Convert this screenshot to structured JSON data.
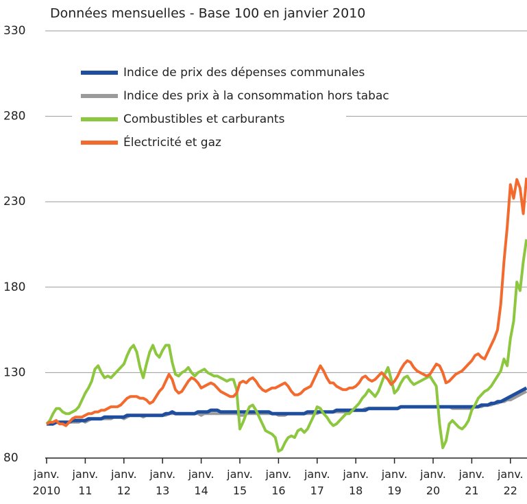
{
  "chart_data": {
    "type": "line",
    "title": "Données mensuelles - Base 100 en janvier 2010",
    "x": [
      "2010-01",
      "2010-02",
      "2010-03",
      "2010-04",
      "2010-05",
      "2010-06",
      "2010-07",
      "2010-08",
      "2010-09",
      "2010-10",
      "2010-11",
      "2010-12",
      "2011-01",
      "2011-02",
      "2011-03",
      "2011-04",
      "2011-05",
      "2011-06",
      "2011-07",
      "2011-08",
      "2011-09",
      "2011-10",
      "2011-11",
      "2011-12",
      "2012-01",
      "2012-02",
      "2012-03",
      "2012-04",
      "2012-05",
      "2012-06",
      "2012-07",
      "2012-08",
      "2012-09",
      "2012-10",
      "2012-11",
      "2012-12",
      "2013-01",
      "2013-02",
      "2013-03",
      "2013-04",
      "2013-05",
      "2013-06",
      "2013-07",
      "2013-08",
      "2013-09",
      "2013-10",
      "2013-11",
      "2013-12",
      "2014-01",
      "2014-02",
      "2014-03",
      "2014-04",
      "2014-05",
      "2014-06",
      "2014-07",
      "2014-08",
      "2014-09",
      "2014-10",
      "2014-11",
      "2014-12",
      "2015-01",
      "2015-02",
      "2015-03",
      "2015-04",
      "2015-05",
      "2015-06",
      "2015-07",
      "2015-08",
      "2015-09",
      "2015-10",
      "2015-11",
      "2015-12",
      "2016-01",
      "2016-02",
      "2016-03",
      "2016-04",
      "2016-05",
      "2016-06",
      "2016-07",
      "2016-08",
      "2016-09",
      "2016-10",
      "2016-11",
      "2016-12",
      "2017-01",
      "2017-02",
      "2017-03",
      "2017-04",
      "2017-05",
      "2017-06",
      "2017-07",
      "2017-08",
      "2017-09",
      "2017-10",
      "2017-11",
      "2017-12",
      "2018-01",
      "2018-02",
      "2018-03",
      "2018-04",
      "2018-05",
      "2018-06",
      "2018-07",
      "2018-08",
      "2018-09",
      "2018-10",
      "2018-11",
      "2018-12",
      "2019-01",
      "2019-02",
      "2019-03",
      "2019-04",
      "2019-05",
      "2019-06",
      "2019-07",
      "2019-08",
      "2019-09",
      "2019-10",
      "2019-11",
      "2019-12",
      "2020-01",
      "2020-02",
      "2020-03",
      "2020-04",
      "2020-05",
      "2020-06",
      "2020-07",
      "2020-08",
      "2020-09",
      "2020-10",
      "2020-11",
      "2020-12",
      "2021-01",
      "2021-02",
      "2021-03",
      "2021-04",
      "2021-05",
      "2021-06",
      "2021-07",
      "2021-08",
      "2021-09",
      "2021-10",
      "2021-11",
      "2021-12",
      "2022-01",
      "2022-02",
      "2022-03",
      "2022-04",
      "2022-05",
      "2022-06"
    ],
    "xticks": [
      {
        "value": "2010-01",
        "label": "janv.\n2010"
      },
      {
        "value": "2011-01",
        "label": "janv.\n11"
      },
      {
        "value": "2012-01",
        "label": "janv.\n12"
      },
      {
        "value": "2013-01",
        "label": "janv.\n13"
      },
      {
        "value": "2014-01",
        "label": "janv.\n14"
      },
      {
        "value": "2015-01",
        "label": "janv.\n15"
      },
      {
        "value": "2016-01",
        "label": "janv.\n16"
      },
      {
        "value": "2017-01",
        "label": "janv.\n17"
      },
      {
        "value": "2018-01",
        "label": "janv.\n18"
      },
      {
        "value": "2019-01",
        "label": "janv.\n19"
      },
      {
        "value": "2020-01",
        "label": "janv.\n20"
      },
      {
        "value": "2021-01",
        "label": "janv.\n21"
      },
      {
        "value": "2022-01",
        "label": "janv.\n22"
      }
    ],
    "ylim": [
      80,
      330
    ],
    "yticks": [
      80,
      130,
      180,
      230,
      280,
      330
    ],
    "grid": true,
    "legend": "top-left",
    "series": [
      {
        "name": "Indice des prix à la consommation hors tabac",
        "color": "#9a9a9a",
        "values": [
          100,
          100,
          100,
          101,
          101,
          101,
          100,
          101,
          101,
          101,
          101,
          102,
          101,
          102,
          103,
          103,
          103,
          103,
          103,
          103,
          103,
          104,
          104,
          104,
          103,
          104,
          105,
          105,
          105,
          105,
          104,
          105,
          105,
          105,
          105,
          105,
          105,
          105,
          106,
          106,
          106,
          106,
          106,
          106,
          106,
          106,
          106,
          106,
          105,
          106,
          106,
          106,
          106,
          106,
          106,
          106,
          106,
          106,
          106,
          106,
          105,
          105,
          106,
          106,
          106,
          106,
          106,
          106,
          106,
          106,
          106,
          106,
          105,
          105,
          105,
          106,
          106,
          106,
          106,
          106,
          106,
          106,
          106,
          106,
          106,
          107,
          107,
          107,
          107,
          107,
          107,
          107,
          107,
          107,
          107,
          108,
          108,
          108,
          108,
          109,
          109,
          109,
          109,
          109,
          109,
          109,
          109,
          109,
          109,
          109,
          110,
          110,
          110,
          110,
          110,
          110,
          110,
          110,
          110,
          110,
          110,
          110,
          110,
          110,
          110,
          110,
          109,
          109,
          109,
          109,
          109,
          109,
          109,
          110,
          110,
          110,
          111,
          111,
          111,
          112,
          112,
          113,
          113,
          114,
          114,
          115,
          116,
          117,
          118,
          119
        ]
      },
      {
        "name": "Indice de prix des dépenses communales",
        "color": "#1f4e9e",
        "values": [
          100,
          100,
          100,
          101,
          101,
          101,
          101,
          101,
          102,
          102,
          102,
          102,
          102,
          103,
          103,
          103,
          103,
          103,
          104,
          104,
          104,
          104,
          104,
          104,
          104,
          105,
          105,
          105,
          105,
          105,
          105,
          105,
          105,
          105,
          105,
          105,
          105,
          106,
          106,
          107,
          106,
          106,
          106,
          106,
          106,
          106,
          106,
          107,
          107,
          107,
          107,
          108,
          108,
          108,
          107,
          107,
          107,
          107,
          107,
          107,
          107,
          107,
          107,
          107,
          107,
          107,
          107,
          107,
          107,
          107,
          106,
          106,
          106,
          106,
          106,
          106,
          106,
          106,
          106,
          106,
          106,
          107,
          107,
          107,
          107,
          107,
          107,
          107,
          107,
          107,
          108,
          108,
          108,
          108,
          108,
          108,
          108,
          108,
          108,
          108,
          109,
          109,
          109,
          109,
          109,
          109,
          109,
          109,
          109,
          109,
          110,
          110,
          110,
          110,
          110,
          110,
          110,
          110,
          110,
          110,
          110,
          110,
          110,
          110,
          110,
          110,
          110,
          110,
          110,
          110,
          110,
          110,
          110,
          110,
          110,
          111,
          111,
          111,
          112,
          112,
          113,
          113,
          114,
          115,
          116,
          117,
          118,
          119,
          120,
          121
        ]
      },
      {
        "name": "Combustibles et carburants",
        "color": "#8dc63f",
        "values": [
          100,
          102,
          106,
          109,
          109,
          107,
          106,
          106,
          107,
          108,
          110,
          114,
          118,
          121,
          125,
          132,
          134,
          130,
          127,
          128,
          127,
          129,
          131,
          133,
          135,
          140,
          144,
          146,
          142,
          133,
          127,
          135,
          142,
          146,
          141,
          139,
          143,
          146,
          146,
          136,
          129,
          128,
          130,
          131,
          133,
          130,
          128,
          130,
          131,
          132,
          130,
          129,
          128,
          128,
          127,
          126,
          125,
          126,
          126,
          120,
          97,
          101,
          106,
          110,
          111,
          108,
          104,
          100,
          96,
          95,
          94,
          92,
          84,
          85,
          89,
          92,
          93,
          92,
          96,
          97,
          95,
          97,
          101,
          105,
          110,
          109,
          106,
          104,
          101,
          99,
          100,
          102,
          104,
          106,
          106,
          108,
          110,
          112,
          115,
          117,
          120,
          118,
          116,
          119,
          124,
          129,
          133,
          126,
          118,
          120,
          124,
          127,
          128,
          125,
          123,
          124,
          125,
          126,
          127,
          128,
          125,
          122,
          100,
          86,
          90,
          100,
          102,
          100,
          98,
          97,
          99,
          102,
          108,
          111,
          115,
          117,
          119,
          120,
          122,
          125,
          128,
          131,
          138,
          134,
          150,
          160,
          183,
          178,
          195,
          208
        ]
      },
      {
        "name": "Électricité et gaz",
        "color": "#f26a2e",
        "values": [
          100,
          101,
          101,
          102,
          100,
          100,
          99,
          101,
          103,
          104,
          104,
          104,
          105,
          106,
          106,
          107,
          107,
          108,
          108,
          109,
          110,
          110,
          110,
          111,
          113,
          115,
          116,
          116,
          116,
          115,
          115,
          114,
          112,
          113,
          116,
          119,
          121,
          125,
          129,
          126,
          120,
          118,
          119,
          122,
          125,
          127,
          126,
          124,
          121,
          122,
          123,
          124,
          123,
          121,
          119,
          118,
          117,
          116,
          116,
          118,
          124,
          125,
          124,
          126,
          127,
          125,
          122,
          120,
          119,
          120,
          121,
          121,
          122,
          123,
          124,
          122,
          119,
          117,
          117,
          118,
          120,
          121,
          122,
          126,
          130,
          134,
          131,
          127,
          124,
          124,
          122,
          121,
          120,
          120,
          121,
          121,
          122,
          124,
          127,
          128,
          126,
          125,
          126,
          128,
          130,
          128,
          126,
          123,
          125,
          128,
          132,
          135,
          137,
          136,
          133,
          131,
          130,
          129,
          128,
          129,
          132,
          135,
          134,
          130,
          124,
          125,
          127,
          129,
          130,
          131,
          133,
          135,
          137,
          140,
          141,
          139,
          138,
          142,
          146,
          150,
          155,
          170,
          195,
          215,
          240,
          232,
          243,
          238,
          223,
          244
        ]
      }
    ],
    "legend_order": [
      1,
      0,
      2,
      3
    ]
  }
}
